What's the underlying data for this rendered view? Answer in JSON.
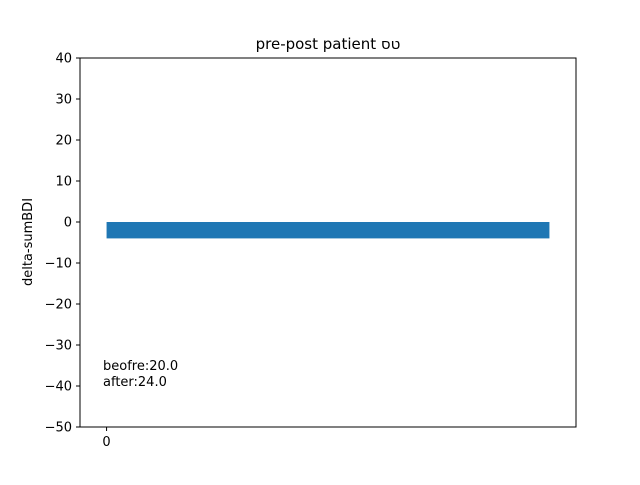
{
  "chart_data": {
    "type": "bar",
    "title": "pre-post patient טס",
    "xlabel": "",
    "ylabel": "delta-sumBDI",
    "categories": [
      0
    ],
    "values": [
      -4.0
    ],
    "ylim": [
      -50,
      40
    ],
    "xlim": [
      -0.6,
      10.6
    ],
    "bar_span": [
      0,
      10
    ],
    "yticks": [
      40,
      30,
      20,
      10,
      0,
      -10,
      -20,
      -30,
      -40,
      -50
    ],
    "ytick_labels": [
      "40",
      "30",
      "20",
      "10",
      "0",
      "−10",
      "−20",
      "−30",
      "−40",
      "−50"
    ],
    "xticks": [
      0
    ],
    "xtick_labels": [
      "0"
    ],
    "annotations": [
      "beofre:20.0",
      "after:24.0"
    ],
    "grid": false,
    "bar_color": "#1f77b4"
  }
}
